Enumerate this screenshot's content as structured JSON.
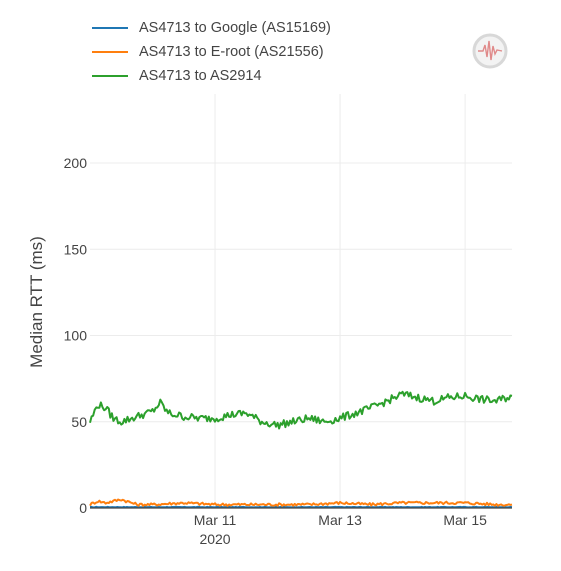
{
  "chart_data": {
    "type": "line",
    "ylabel": "Median RTT (ms)",
    "ylim": [
      0,
      240
    ],
    "xlim": [
      "2020-03-09T00:00",
      "2020-03-15T18:00"
    ],
    "yticks": [
      0,
      50,
      100,
      150,
      200
    ],
    "xticks": [
      {
        "x": "2020-03-11",
        "label": "Mar 11",
        "sublabel": "2020"
      },
      {
        "x": "2020-03-13",
        "label": "Mar 13",
        "sublabel": ""
      },
      {
        "x": "2020-03-15",
        "label": "Mar 15",
        "sublabel": ""
      }
    ],
    "grid": true,
    "legend_position": "top-left",
    "series": [
      {
        "name": "AS4713 to Google (AS15169)",
        "color": "#1f77b4",
        "x": [
          "2020-03-09T00:00",
          "2020-03-10T00:00",
          "2020-03-11T00:00",
          "2020-03-12T00:00",
          "2020-03-13T00:00",
          "2020-03-14T00:00",
          "2020-03-15T00:00",
          "2020-03-15T18:00"
        ],
        "y": [
          0.5,
          0.5,
          0.5,
          0.5,
          0.5,
          0.5,
          0.5,
          0.5
        ]
      },
      {
        "name": "AS4713 to E-root (AS21556)",
        "color": "#ff7f0e",
        "x": [
          "2020-03-09T00:00",
          "2020-03-09T03:00",
          "2020-03-09T06:00",
          "2020-03-09T12:00",
          "2020-03-09T18:00",
          "2020-03-10T00:00",
          "2020-03-10T12:00",
          "2020-03-11T00:00",
          "2020-03-11T12:00",
          "2020-03-12T00:00",
          "2020-03-12T12:00",
          "2020-03-13T00:00",
          "2020-03-13T12:00",
          "2020-03-14T00:00",
          "2020-03-14T12:00",
          "2020-03-15T00:00",
          "2020-03-15T12:00",
          "2020-03-15T18:00"
        ],
        "y": [
          2,
          4,
          3,
          5,
          2,
          2,
          3,
          2,
          2,
          2,
          2,
          3,
          2,
          3,
          3,
          3,
          2,
          2
        ]
      },
      {
        "name": "AS4713 to AS2914",
        "color": "#2ca02c",
        "x": [
          "2020-03-09T00:00",
          "2020-03-09T03:00",
          "2020-03-09T06:00",
          "2020-03-09T09:00",
          "2020-03-09T12:00",
          "2020-03-09T18:00",
          "2020-03-10T00:00",
          "2020-03-10T03:00",
          "2020-03-10T06:00",
          "2020-03-10T12:00",
          "2020-03-10T18:00",
          "2020-03-11T00:00",
          "2020-03-11T06:00",
          "2020-03-11T12:00",
          "2020-03-11T18:00",
          "2020-03-12T00:00",
          "2020-03-12T06:00",
          "2020-03-12T12:00",
          "2020-03-12T18:00",
          "2020-03-13T00:00",
          "2020-03-13T06:00",
          "2020-03-13T12:00",
          "2020-03-13T18:00",
          "2020-03-14T00:00",
          "2020-03-14T06:00",
          "2020-03-14T12:00",
          "2020-03-14T18:00",
          "2020-03-15T00:00",
          "2020-03-15T06:00",
          "2020-03-15T12:00",
          "2020-03-15T18:00"
        ],
        "y": [
          50,
          60,
          58,
          52,
          50,
          53,
          56,
          61,
          55,
          53,
          52,
          52,
          54,
          55,
          50,
          48,
          50,
          52,
          50,
          52,
          55,
          58,
          62,
          66,
          64,
          62,
          64,
          65,
          63,
          62,
          65
        ]
      }
    ]
  }
}
